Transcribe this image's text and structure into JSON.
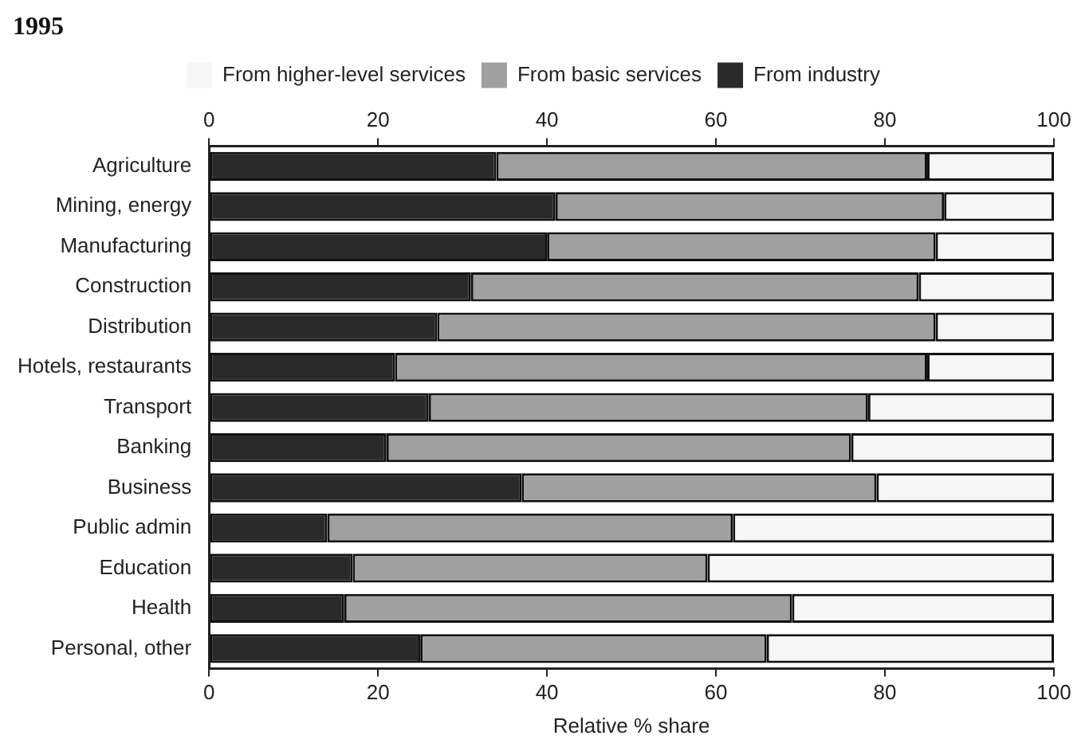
{
  "chart_data": {
    "type": "bar",
    "orientation": "horizontal",
    "stacked": true,
    "title": "1995",
    "xlabel": "Relative % share",
    "categories": [
      "Agriculture",
      "Mining, energy",
      "Manufacturing",
      "Construction",
      "Distribution",
      "Hotels, restaurants",
      "Transport",
      "Banking",
      "Business",
      "Public admin",
      "Education",
      "Health",
      "Personal, other"
    ],
    "series": [
      {
        "name": "From industry",
        "color": "#2a2a2a",
        "values": [
          34,
          41,
          40,
          31,
          27,
          22,
          26,
          21,
          37,
          14,
          17,
          16,
          25
        ]
      },
      {
        "name": "From basic services",
        "color": "#a0a0a0",
        "values": [
          51,
          46,
          46,
          53,
          59,
          63,
          52,
          55,
          42,
          48,
          42,
          53,
          41
        ]
      },
      {
        "name": "From higher-level services",
        "color": "#f6f6f6",
        "values": [
          15,
          13,
          14,
          16,
          14,
          15,
          22,
          24,
          21,
          38,
          41,
          31,
          34
        ]
      }
    ],
    "xlim": [
      0,
      100
    ],
    "xticks": [
      0,
      20,
      40,
      60,
      80,
      100
    ],
    "x2lim": [
      0,
      100
    ],
    "x2ticks": [
      0,
      20,
      40,
      60,
      80,
      100
    ],
    "legend": "top"
  }
}
